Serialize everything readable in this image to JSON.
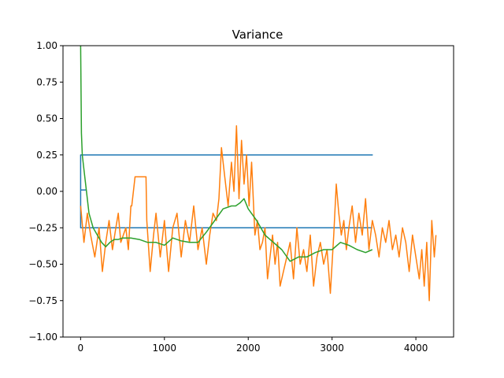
{
  "chart_data": {
    "type": "line",
    "title": "Variance",
    "xlabel": "",
    "ylabel": "",
    "xlim": [
      -210,
      4450
    ],
    "ylim": [
      -1.0,
      1.0
    ],
    "xticks": [
      0,
      1000,
      2000,
      3000,
      4000
    ],
    "xtick_labels": [
      "0",
      "1000",
      "2000",
      "3000",
      "4000"
    ],
    "yticks": [
      -1.0,
      -0.75,
      -0.5,
      -0.25,
      0.0,
      0.25,
      0.5,
      0.75,
      1.0
    ],
    "ytick_labels": [
      "−1.00",
      "−0.75",
      "−0.50",
      "−0.25",
      "0.00",
      "0.25",
      "0.50",
      "0.75",
      "1.00"
    ],
    "grid": false,
    "legend": "none",
    "colors": [
      "#1f77b4",
      "#ff7f0e",
      "#2ca02c"
    ],
    "series": [
      {
        "color": "#1f77b4",
        "x": [
          0,
          0,
          60,
          0,
          0,
          3480,
          0,
          0,
          3480
        ],
        "y": [
          0.0,
          0.01,
          0.01,
          0.01,
          0.25,
          0.25,
          0.25,
          -0.25,
          -0.25
        ]
      },
      {
        "color": "#ff7f0e",
        "x": [
          0,
          40,
          80,
          120,
          170,
          220,
          260,
          300,
          340,
          380,
          420,
          450,
          480,
          510,
          540,
          570,
          600,
          610,
          650,
          700,
          780,
          790,
          830,
          870,
          900,
          950,
          1000,
          1050,
          1100,
          1150,
          1200,
          1250,
          1300,
          1350,
          1400,
          1450,
          1500,
          1540,
          1580,
          1620,
          1650,
          1680,
          1720,
          1760,
          1800,
          1830,
          1860,
          1890,
          1920,
          1950,
          1980,
          2010,
          2040,
          2080,
          2110,
          2140,
          2170,
          2200,
          2230,
          2260,
          2290,
          2320,
          2350,
          2380,
          2420,
          2460,
          2500,
          2540,
          2580,
          2620,
          2660,
          2700,
          2740,
          2780,
          2820,
          2860,
          2900,
          2940,
          2980,
          3020,
          3050,
          3080,
          3110,
          3140,
          3170,
          3200,
          3240,
          3280,
          3320,
          3360,
          3400,
          3440,
          3480,
          3520,
          3560,
          3600,
          3640,
          3680,
          3720,
          3760,
          3800,
          3840,
          3880,
          3920,
          3960,
          4000,
          4040,
          4070,
          4100,
          4130,
          4160,
          4190,
          4220,
          4240
        ],
        "y": [
          -0.1,
          -0.35,
          -0.15,
          -0.3,
          -0.45,
          -0.25,
          -0.55,
          -0.35,
          -0.2,
          -0.4,
          -0.25,
          -0.15,
          -0.35,
          -0.3,
          -0.25,
          -0.4,
          -0.1,
          -0.1,
          0.1,
          0.1,
          0.1,
          -0.2,
          -0.55,
          -0.3,
          -0.15,
          -0.45,
          -0.2,
          -0.55,
          -0.25,
          -0.15,
          -0.45,
          -0.2,
          -0.35,
          -0.1,
          -0.4,
          -0.25,
          -0.5,
          -0.3,
          -0.15,
          -0.2,
          -0.05,
          0.3,
          0.1,
          -0.1,
          0.2,
          0.0,
          0.45,
          -0.05,
          0.35,
          0.05,
          0.25,
          -0.1,
          0.2,
          -0.3,
          -0.2,
          -0.4,
          -0.35,
          -0.25,
          -0.6,
          -0.45,
          -0.3,
          -0.5,
          -0.35,
          -0.65,
          -0.55,
          -0.45,
          -0.35,
          -0.6,
          -0.25,
          -0.5,
          -0.4,
          -0.55,
          -0.3,
          -0.65,
          -0.45,
          -0.35,
          -0.5,
          -0.4,
          -0.7,
          -0.3,
          0.05,
          -0.15,
          -0.3,
          -0.2,
          -0.4,
          -0.25,
          -0.1,
          -0.35,
          -0.15,
          -0.3,
          -0.05,
          -0.4,
          -0.2,
          -0.3,
          -0.45,
          -0.25,
          -0.35,
          -0.2,
          -0.4,
          -0.3,
          -0.45,
          -0.25,
          -0.35,
          -0.55,
          -0.3,
          -0.45,
          -0.6,
          -0.4,
          -0.65,
          -0.35,
          -0.75,
          -0.2,
          -0.45,
          -0.3
        ]
      },
      {
        "color": "#2ca02c",
        "x": [
          0,
          10,
          20,
          40,
          70,
          100,
          150,
          200,
          250,
          300,
          350,
          400,
          450,
          500,
          600,
          700,
          800,
          900,
          1000,
          1100,
          1200,
          1300,
          1400,
          1500,
          1600,
          1700,
          1800,
          1850,
          1900,
          1950,
          2000,
          2100,
          2200,
          2300,
          2400,
          2500,
          2600,
          2700,
          2800,
          2900,
          3000,
          3100,
          3200,
          3300,
          3400,
          3480
        ],
        "y": [
          1.0,
          0.4,
          0.25,
          0.15,
          0.0,
          -0.15,
          -0.25,
          -0.3,
          -0.35,
          -0.38,
          -0.35,
          -0.33,
          -0.33,
          -0.32,
          -0.32,
          -0.33,
          -0.35,
          -0.35,
          -0.37,
          -0.32,
          -0.34,
          -0.35,
          -0.35,
          -0.28,
          -0.2,
          -0.12,
          -0.1,
          -0.1,
          -0.08,
          -0.05,
          -0.12,
          -0.2,
          -0.3,
          -0.35,
          -0.4,
          -0.48,
          -0.45,
          -0.45,
          -0.42,
          -0.4,
          -0.4,
          -0.35,
          -0.37,
          -0.4,
          -0.42,
          -0.4
        ]
      }
    ]
  }
}
